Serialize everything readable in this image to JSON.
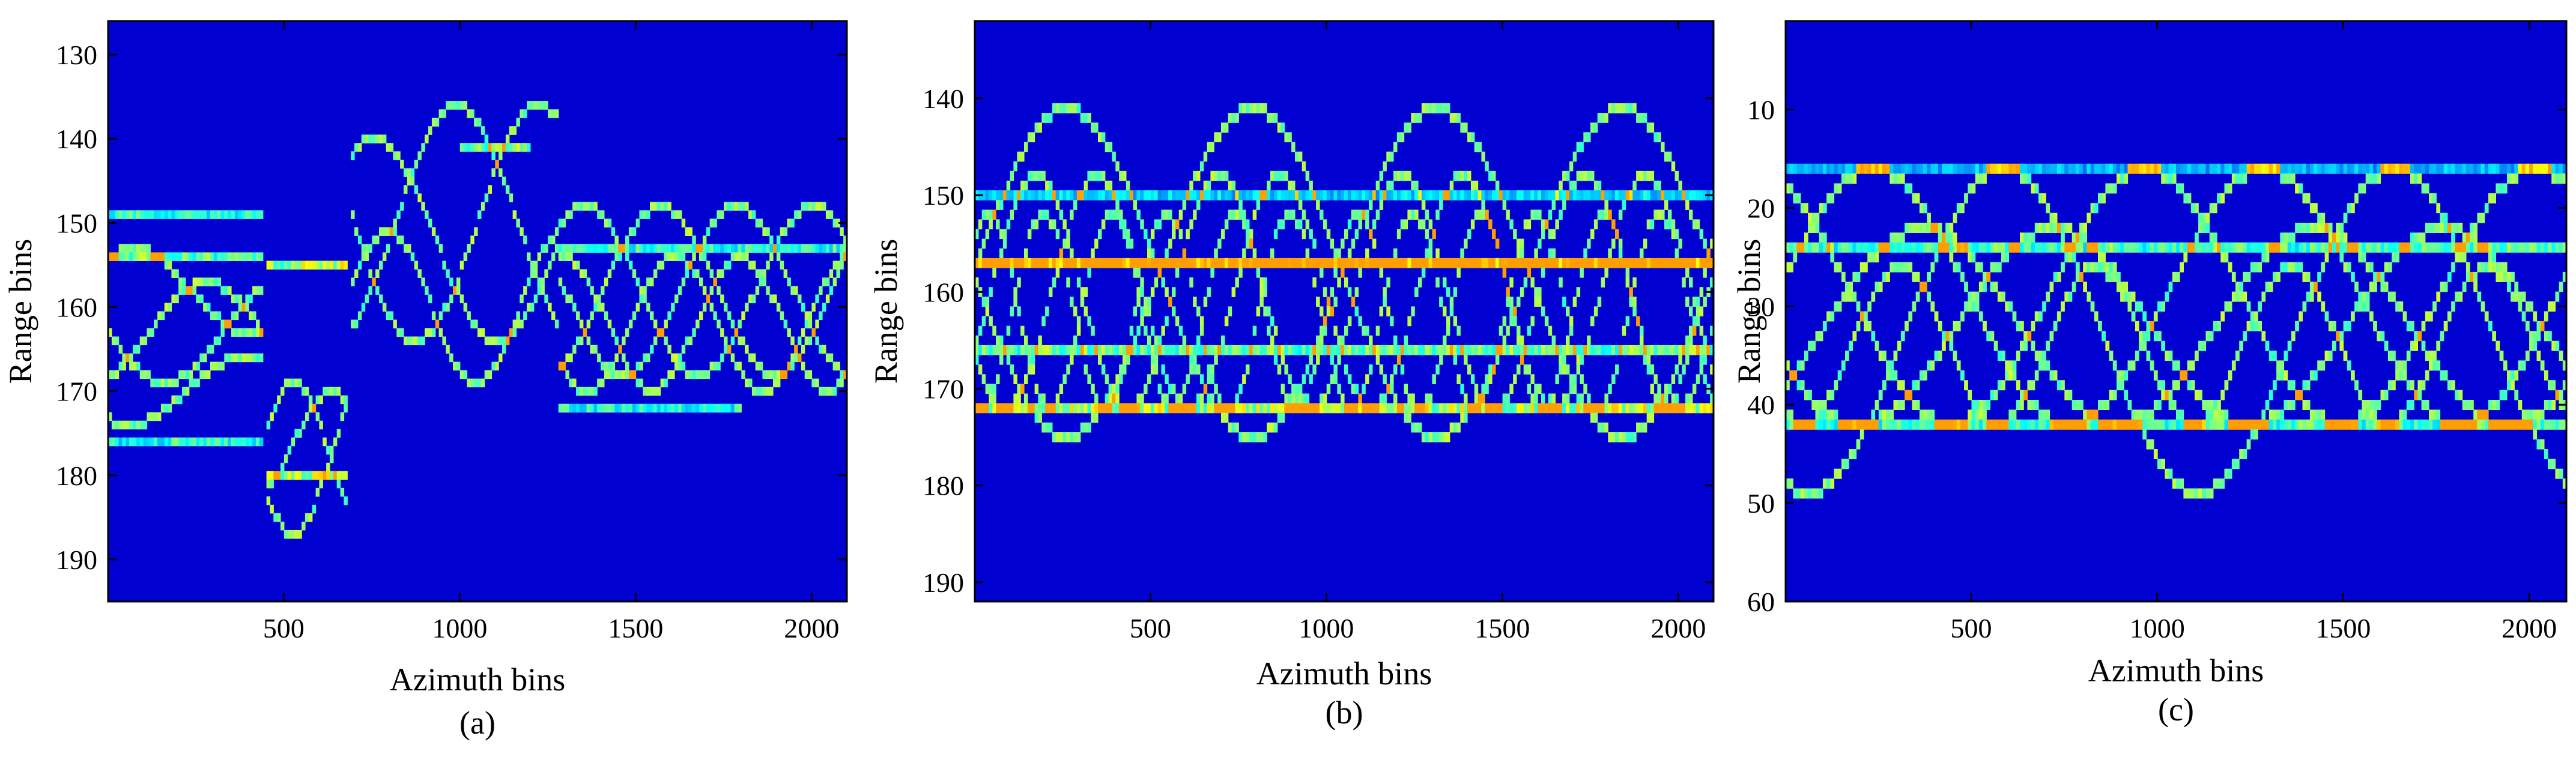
{
  "chart_data": [
    {
      "type": "heatmap",
      "caption": "(a)",
      "xlabel": "Azimuth bins",
      "ylabel": "Range bins",
      "xlim": [
        1,
        2100
      ],
      "ylim": [
        126,
        195
      ],
      "y_reversed": true,
      "xticks": [
        500,
        1000,
        1500,
        2000
      ],
      "yticks": [
        130,
        140,
        150,
        160,
        170,
        180,
        190
      ],
      "grid": false,
      "colormap": "jet",
      "curves": [
        {
          "a": 6,
          "b": 163,
          "period": 650,
          "phase": 0,
          "x0": 1,
          "x1": 440
        },
        {
          "a": 6,
          "b": 163,
          "period": 650,
          "phase": 2.0,
          "x0": 1,
          "x1": 440
        },
        {
          "a": 5,
          "b": 158,
          "period": 650,
          "phase": 4.0,
          "x0": 1,
          "x1": 440
        },
        {
          "a": 4,
          "b": 170,
          "period": 650,
          "phase": 1.0,
          "x0": 1,
          "x1": 440
        },
        {
          "a": 9,
          "b": 178,
          "period": 420,
          "phase": 0,
          "x0": 450,
          "x1": 680
        },
        {
          "a": 9,
          "b": 178,
          "period": 420,
          "phase": 3.1,
          "x0": 450,
          "x1": 680
        },
        {
          "a": 6,
          "b": 176,
          "period": 420,
          "phase": 1.5,
          "x0": 450,
          "x1": 680
        },
        {
          "a": 14,
          "b": 150,
          "period": 700,
          "phase": 0,
          "x0": 690,
          "x1": 1280
        },
        {
          "a": 14,
          "b": 150,
          "period": 700,
          "phase": 2.1,
          "x0": 690,
          "x1": 1280
        },
        {
          "a": 12,
          "b": 152,
          "period": 700,
          "phase": 4.2,
          "x0": 690,
          "x1": 1280
        },
        {
          "a": 9,
          "b": 160,
          "period": 500,
          "phase": 1.0,
          "x0": 690,
          "x1": 1280
        },
        {
          "a": 10,
          "b": 158,
          "period": 650,
          "phase": 0,
          "x0": 1280,
          "x1": 2100
        },
        {
          "a": 10,
          "b": 158,
          "period": 650,
          "phase": 2.1,
          "x0": 1280,
          "x1": 2100
        },
        {
          "a": 10,
          "b": 158,
          "period": 650,
          "phase": 4.2,
          "x0": 1280,
          "x1": 2100
        },
        {
          "a": 8,
          "b": 162,
          "period": 500,
          "phase": 1.0,
          "x0": 1280,
          "x1": 2100
        },
        {
          "a": 8,
          "b": 162,
          "period": 500,
          "phase": 3.3,
          "x0": 1280,
          "x1": 2100
        }
      ],
      "bands": [
        {
          "y": 149,
          "x0": 1,
          "x1": 440,
          "w": 0.4
        },
        {
          "y": 154,
          "x0": 1,
          "x1": 440,
          "w": 0.5
        },
        {
          "y": 155,
          "x0": 450,
          "x1": 680,
          "w": 0.6
        },
        {
          "y": 180,
          "x0": 450,
          "x1": 680,
          "w": 0.6
        },
        {
          "y": 176,
          "x0": 1,
          "x1": 440,
          "w": 0.4
        },
        {
          "y": 141,
          "x0": 1000,
          "x1": 1200,
          "w": 0.5
        },
        {
          "y": 153,
          "x0": 1280,
          "x1": 2100,
          "w": 0.4
        },
        {
          "y": 172,
          "x0": 1280,
          "x1": 1800,
          "w": 0.4
        }
      ]
    },
    {
      "type": "heatmap",
      "caption": "(b)",
      "xlabel": "Azimuth bins",
      "ylabel": "Range bins",
      "xlim": [
        1,
        2100
      ],
      "ylim": [
        132,
        192
      ],
      "y_reversed": true,
      "xticks": [
        500,
        1000,
        1500,
        2000
      ],
      "yticks": [
        140,
        150,
        160,
        170,
        180,
        190
      ],
      "grid": false,
      "colormap": "jet",
      "curves": [
        {
          "a": 17,
          "b": 158,
          "period": 1050,
          "phase": 0,
          "x0": 1,
          "x1": 2100
        },
        {
          "a": 17,
          "b": 158,
          "period": 1050,
          "phase": 3.14,
          "x0": 1,
          "x1": 2100
        },
        {
          "a": 12,
          "b": 160,
          "period": 520,
          "phase": 0.5,
          "x0": 1,
          "x1": 2100
        },
        {
          "a": 12,
          "b": 160,
          "period": 520,
          "phase": 2.6,
          "x0": 1,
          "x1": 2100
        },
        {
          "a": 10,
          "b": 162,
          "period": 350,
          "phase": 1.2,
          "x0": 1,
          "x1": 2100
        },
        {
          "a": 10,
          "b": 162,
          "period": 350,
          "phase": 4.0,
          "x0": 1,
          "x1": 2100
        }
      ],
      "bands": [
        {
          "y": 157,
          "x0": 1,
          "x1": 2100,
          "w": 1.0
        },
        {
          "y": 166,
          "x0": 1,
          "x1": 2100,
          "w": 0.5
        },
        {
          "y": 172,
          "x0": 1,
          "x1": 2100,
          "w": 0.6
        },
        {
          "y": 150,
          "x0": 1,
          "x1": 2100,
          "w": 0.3
        }
      ]
    },
    {
      "type": "heatmap",
      "caption": "(c)",
      "xlabel": "Azimuth bins",
      "ylabel": "Range bins",
      "xlim": [
        1,
        2100
      ],
      "ylim": [
        1,
        60
      ],
      "y_reversed": true,
      "xticks": [
        500,
        1000,
        1500,
        2000
      ],
      "yticks": [
        10,
        20,
        30,
        40,
        50,
        60
      ],
      "grid": false,
      "colormap": "jet",
      "curves": [
        {
          "a": 16.5,
          "b": 32.5,
          "period": 1050,
          "phase": 1.2,
          "x0": 1,
          "x1": 2100
        },
        {
          "a": 13,
          "b": 29,
          "period": 1050,
          "phase": 3.3,
          "x0": 1,
          "x1": 2100
        },
        {
          "a": 13,
          "b": 29,
          "period": 1050,
          "phase": 5.2,
          "x0": 1,
          "x1": 2100
        },
        {
          "a": 10,
          "b": 32,
          "period": 1050,
          "phase": 0.4,
          "x0": 1,
          "x1": 2100
        },
        {
          "a": 10,
          "b": 32,
          "period": 1050,
          "phase": 2.5,
          "x0": 1,
          "x1": 2100
        },
        {
          "a": 8,
          "b": 34,
          "period": 525,
          "phase": 1.0,
          "x0": 1,
          "x1": 2100
        }
      ],
      "bands": [
        {
          "y": 24,
          "x0": 1,
          "x1": 2100,
          "w": 0.45
        },
        {
          "y": 42,
          "x0": 1,
          "x1": 2100,
          "w": 0.45
        },
        {
          "y": 16,
          "x0": 1,
          "x1": 2100,
          "w": 0.25
        }
      ]
    }
  ]
}
